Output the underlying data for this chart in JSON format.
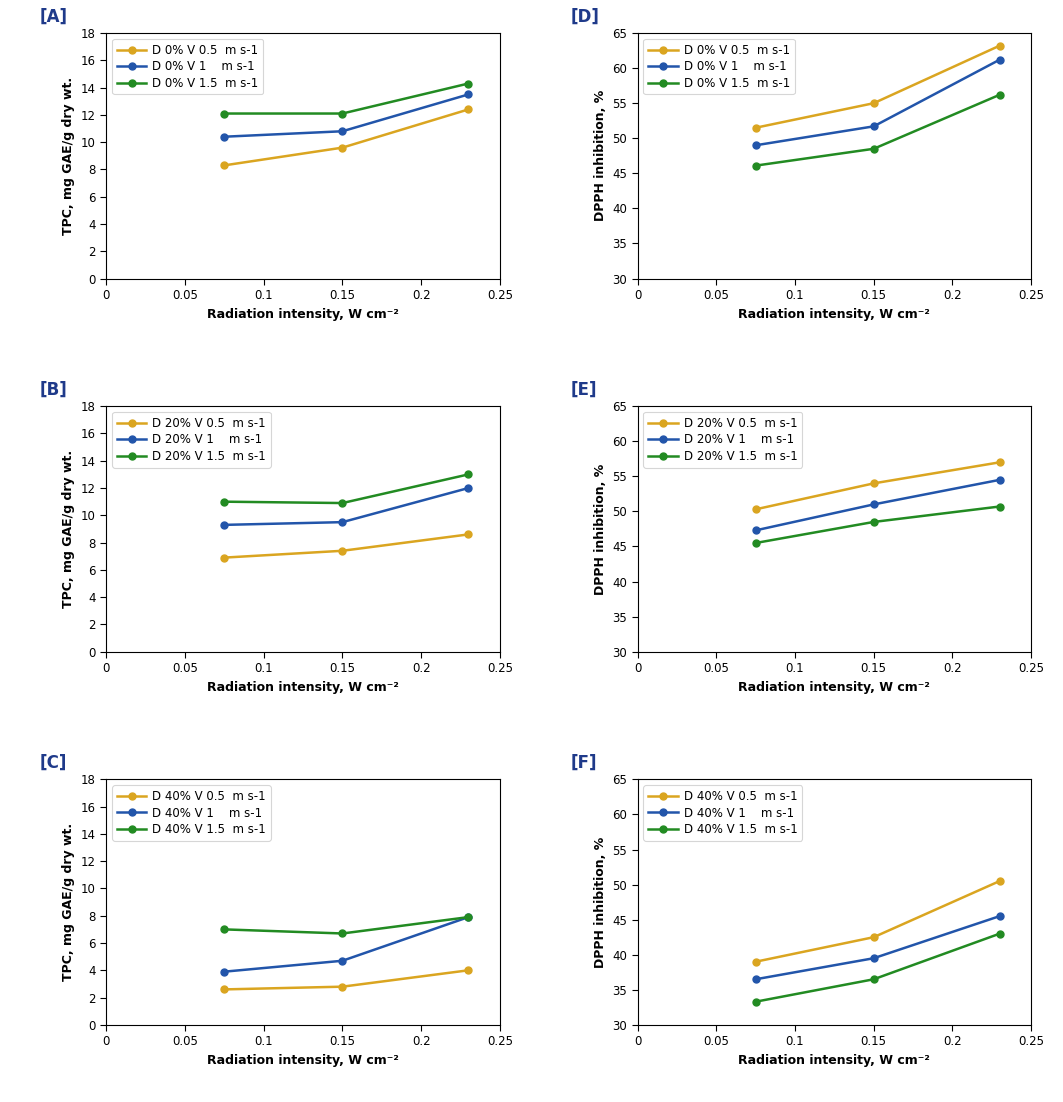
{
  "x": [
    0.075,
    0.15,
    0.23
  ],
  "panels": [
    {
      "label": "[A]",
      "type": "TPC",
      "ylabel": "TPC, mg GAE/g dry wt.",
      "ylim": [
        0,
        18
      ],
      "yticks": [
        0,
        2,
        4,
        6,
        8,
        10,
        12,
        14,
        16,
        18
      ],
      "series": [
        {
          "legend": "D 0% V 0.5  m s-1",
          "color": "#DAA520",
          "values": [
            8.3,
            9.6,
            12.4
          ]
        },
        {
          "legend": "D 0% V 1    m s-1",
          "color": "#2255AA",
          "values": [
            10.4,
            10.8,
            13.5
          ]
        },
        {
          "legend": "D 0% V 1.5  m s-1",
          "color": "#228B22",
          "values": [
            12.1,
            12.1,
            14.3
          ]
        }
      ]
    },
    {
      "label": "[B]",
      "type": "TPC",
      "ylabel": "TPC, mg GAE/g dry wt.",
      "ylim": [
        0,
        18
      ],
      "yticks": [
        0,
        2,
        4,
        6,
        8,
        10,
        12,
        14,
        16,
        18
      ],
      "series": [
        {
          "legend": "D 20% V 0.5  m s-1",
          "color": "#DAA520",
          "values": [
            6.9,
            7.4,
            8.6
          ]
        },
        {
          "legend": "D 20% V 1    m s-1",
          "color": "#2255AA",
          "values": [
            9.3,
            9.5,
            12.0
          ]
        },
        {
          "legend": "D 20% V 1.5  m s-1",
          "color": "#228B22",
          "values": [
            11.0,
            10.9,
            13.0
          ]
        }
      ]
    },
    {
      "label": "[C]",
      "type": "TPC",
      "ylabel": "TPC, mg GAE/g dry wt.",
      "ylim": [
        0,
        18
      ],
      "yticks": [
        0,
        2,
        4,
        6,
        8,
        10,
        12,
        14,
        16,
        18
      ],
      "series": [
        {
          "legend": "D 40% V 0.5  m s-1",
          "color": "#DAA520",
          "values": [
            2.6,
            2.8,
            4.0
          ]
        },
        {
          "legend": "D 40% V 1    m s-1",
          "color": "#2255AA",
          "values": [
            3.9,
            4.7,
            7.9
          ]
        },
        {
          "legend": "D 40% V 1.5  m s-1",
          "color": "#228B22",
          "values": [
            7.0,
            6.7,
            7.9
          ]
        }
      ]
    },
    {
      "label": "[D]",
      "type": "DPPH",
      "ylabel": "DPPH inhibition, %",
      "ylim": [
        30,
        65
      ],
      "yticks": [
        30,
        35,
        40,
        45,
        50,
        55,
        60,
        65
      ],
      "series": [
        {
          "legend": "D 0% V 0.5  m s-1",
          "color": "#DAA520",
          "values": [
            51.5,
            55.0,
            63.2
          ]
        },
        {
          "legend": "D 0% V 1    m s-1",
          "color": "#2255AA",
          "values": [
            49.0,
            51.7,
            61.2
          ]
        },
        {
          "legend": "D 0% V 1.5  m s-1",
          "color": "#228B22",
          "values": [
            46.1,
            48.5,
            56.2
          ]
        }
      ]
    },
    {
      "label": "[E]",
      "type": "DPPH",
      "ylabel": "DPPH inhibition, %",
      "ylim": [
        30,
        65
      ],
      "yticks": [
        30,
        35,
        40,
        45,
        50,
        55,
        60,
        65
      ],
      "series": [
        {
          "legend": "D 20% V 0.5  m s-1",
          "color": "#DAA520",
          "values": [
            50.3,
            54.0,
            57.0
          ]
        },
        {
          "legend": "D 20% V 1    m s-1",
          "color": "#2255AA",
          "values": [
            47.3,
            51.0,
            54.5
          ]
        },
        {
          "legend": "D 20% V 1.5  m s-1",
          "color": "#228B22",
          "values": [
            45.5,
            48.5,
            50.7
          ]
        }
      ]
    },
    {
      "label": "[F]",
      "type": "DPPH",
      "ylabel": "DPPH inhibition, %",
      "ylim": [
        30,
        65
      ],
      "yticks": [
        30,
        35,
        40,
        45,
        50,
        55,
        60,
        65
      ],
      "series": [
        {
          "legend": "D 40% V 0.5  m s-1",
          "color": "#DAA520",
          "values": [
            39.0,
            42.5,
            50.5
          ]
        },
        {
          "legend": "D 40% V 1    m s-1",
          "color": "#2255AA",
          "values": [
            36.5,
            39.5,
            45.5
          ]
        },
        {
          "legend": "D 40% V 1.5  m s-1",
          "color": "#228B22",
          "values": [
            33.3,
            36.5,
            43.0
          ]
        }
      ]
    }
  ],
  "xlabel": "Radiation intensity, W cm⁻²",
  "xlim": [
    0,
    0.25
  ],
  "xticks": [
    0,
    0.05,
    0.1,
    0.15,
    0.2,
    0.25
  ],
  "label_color": "#1F3A8A",
  "marker": "o",
  "markersize": 5,
  "linewidth": 1.8,
  "hspace": 0.52,
  "wspace": 0.35
}
